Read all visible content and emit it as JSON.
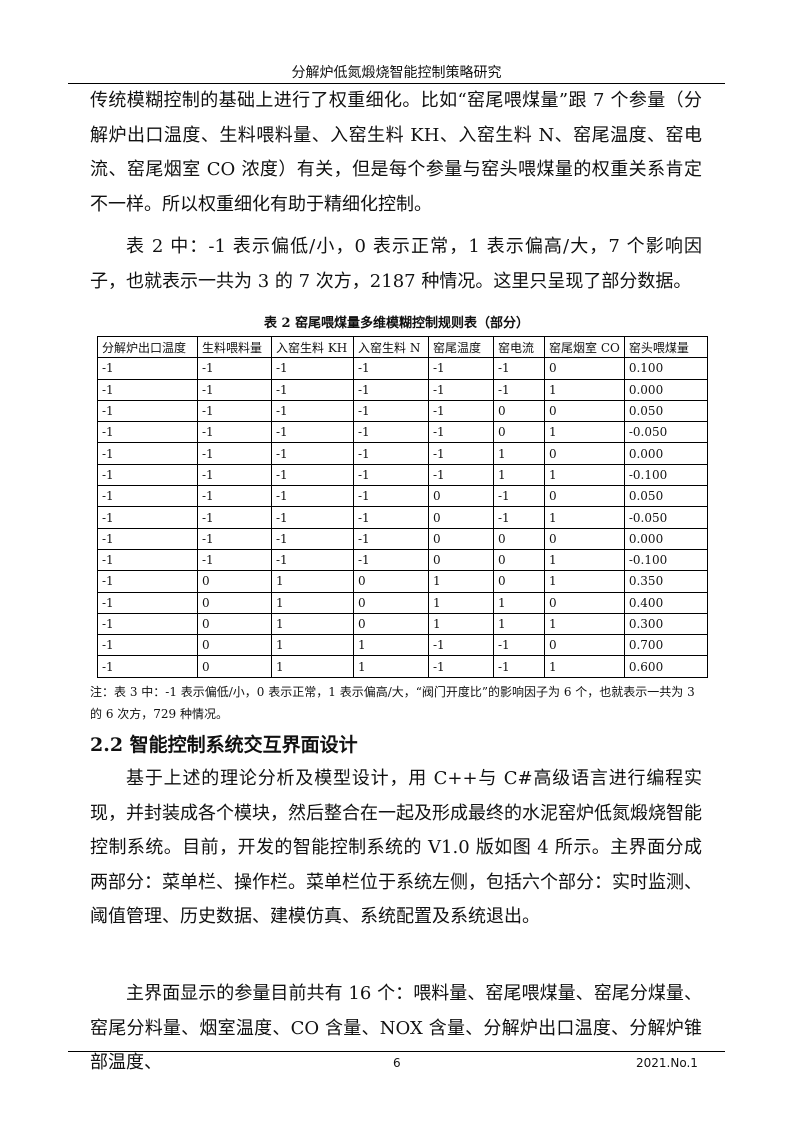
{
  "running_head": "分解炉低氮煅烧智能控制策略研究",
  "paragraphs": [
    "传统模糊控制的基础上进行了权重细化。比如“窑尾喂煤量”跟 7 个参量（分解炉出口温度、生料喂料量、入窑生料 KH、入窑生料 N、窑尾温度、窑电流、窑尾烟室 CO 浓度）有关，但是每个参量与窑头喂煤量的权重关系肯定不一样。所以权重细化有助于精细化控制。",
    "表 2 中：-1 表示偏低/小，0 表示正常，1 表示偏高/大，7 个影响因子，也就表示一共为 3 的 7 次方，2187 种情况。这里只呈现了部分数据。"
  ],
  "table": {
    "caption": "表 2  窑尾喂煤量多维模糊控制规则表（部分）",
    "headers": [
      "分解炉出口温度",
      "生料喂料量",
      "入窑生料 KH",
      "入窑生料 N",
      "窑尾温度",
      "窑电流",
      "窑尾烟室 CO",
      "窑头喂煤量"
    ],
    "rows": [
      [
        "-1",
        "-1",
        "-1",
        "-1",
        "-1",
        "-1",
        "0",
        "0.100"
      ],
      [
        "-1",
        "-1",
        "-1",
        "-1",
        "-1",
        "-1",
        "1",
        "0.000"
      ],
      [
        "-1",
        "-1",
        "-1",
        "-1",
        "-1",
        "0",
        "0",
        "0.050"
      ],
      [
        "-1",
        "-1",
        "-1",
        "-1",
        "-1",
        "0",
        "1",
        "-0.050"
      ],
      [
        "-1",
        "-1",
        "-1",
        "-1",
        "-1",
        "1",
        "0",
        "0.000"
      ],
      [
        "-1",
        "-1",
        "-1",
        "-1",
        "-1",
        "1",
        "1",
        "-0.100"
      ],
      [
        "-1",
        "-1",
        "-1",
        "-1",
        "0",
        "-1",
        "0",
        "0.050"
      ],
      [
        "-1",
        "-1",
        "-1",
        "-1",
        "0",
        "-1",
        "1",
        "-0.050"
      ],
      [
        "-1",
        "-1",
        "-1",
        "-1",
        "0",
        "0",
        "0",
        "0.000"
      ],
      [
        "-1",
        "-1",
        "-1",
        "-1",
        "0",
        "0",
        "1",
        "-0.100"
      ],
      [
        "-1",
        "0",
        "1",
        "0",
        "1",
        "0",
        "1",
        "0.350"
      ],
      [
        "-1",
        "0",
        "1",
        "0",
        "1",
        "1",
        "0",
        "0.400"
      ],
      [
        "-1",
        "0",
        "1",
        "0",
        "1",
        "1",
        "1",
        "0.300"
      ],
      [
        "-1",
        "0",
        "1",
        "1",
        "-1",
        "-1",
        "0",
        "0.700"
      ],
      [
        "-1",
        "0",
        "1",
        "1",
        "-1",
        "-1",
        "1",
        "0.600"
      ]
    ],
    "note": "注：表 3 中：-1 表示偏低/小，0 表示正常，1 表示偏高/大，“阀门开度比”的影响因子为 6 个，也就表示一共为 3 的 6 次方，729 种情况。"
  },
  "section_heading": "2.2 智能控制系统交互界面设计",
  "paragraphs2": [
    "基于上述的理论分析及模型设计，用 C++与 C#高级语言进行编程实现，并封装成各个模块，然后整合在一起及形成最终的水泥窑炉低氮煅烧智能控制系统。目前，开发的智能控制系统的 V1.0 版如图 4 所示。主界面分成两部分：菜单栏、操作栏。菜单栏位于系统左侧，包括六个部分：实时监测、阈值管理、历史数据、建模仿真、系统配置及系统退出。",
    "主界面显示的参量目前共有 16 个：喂料量、窑尾喂煤量、窑尾分煤量、窑尾分料量、烟室温度、CO 含量、NOX 含量、分解炉出口温度、分解炉锥部温度、"
  ],
  "footer": {
    "page_number": "6",
    "issue": "2021.No.1"
  }
}
